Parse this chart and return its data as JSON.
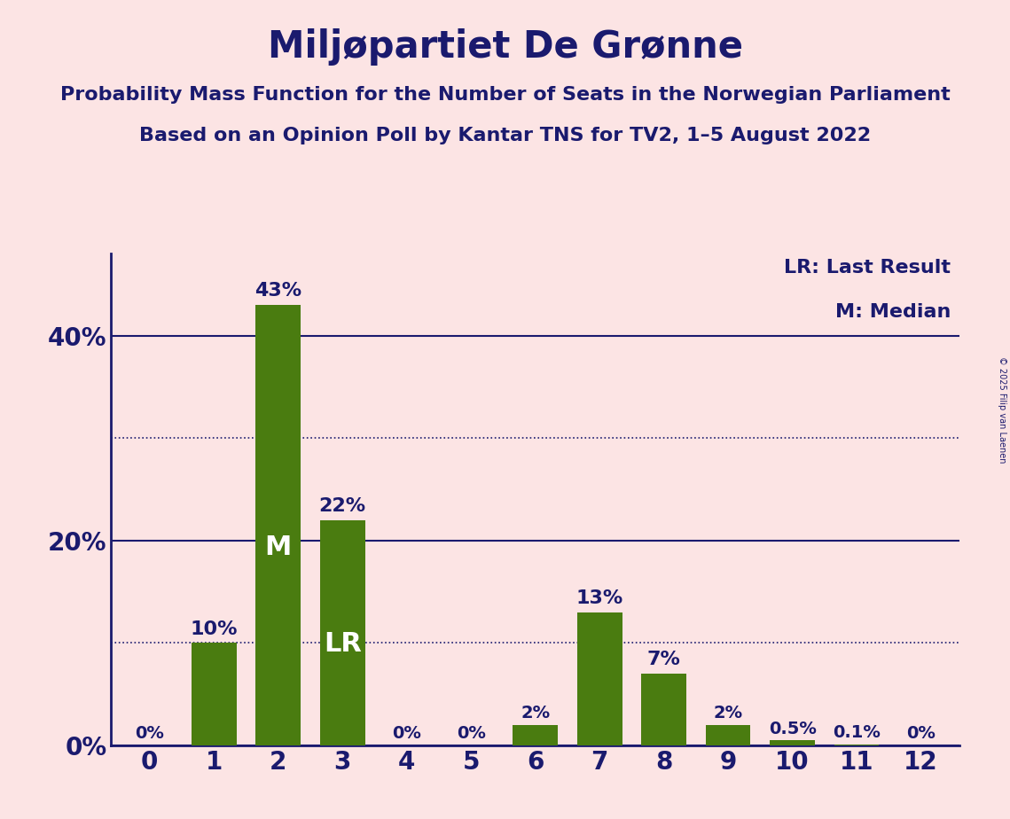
{
  "title": "Miljøpartiet De Grønne",
  "subtitle1": "Probability Mass Function for the Number of Seats in the Norwegian Parliament",
  "subtitle2": "Based on an Opinion Poll by Kantar TNS for TV2, 1–5 August 2022",
  "copyright": "© 2025 Filip van Laenen",
  "categories": [
    0,
    1,
    2,
    3,
    4,
    5,
    6,
    7,
    8,
    9,
    10,
    11,
    12
  ],
  "values": [
    0.0,
    10.0,
    43.0,
    22.0,
    0.0,
    0.0,
    2.0,
    13.0,
    7.0,
    2.0,
    0.5,
    0.1,
    0.0
  ],
  "bar_color": "#4a7c10",
  "background_color": "#fce4e4",
  "text_color": "#1a1a6e",
  "bar_labels": [
    "0%",
    "10%",
    "43%",
    "22%",
    "0%",
    "0%",
    "2%",
    "13%",
    "7%",
    "2%",
    "0.5%",
    "0.1%",
    "0%"
  ],
  "median_bar": 2,
  "lr_bar": 3,
  "legend_lr": "LR: Last Result",
  "legend_m": "M: Median",
  "ytick_labels_show": [
    "0%",
    "20%",
    "40%"
  ],
  "ytick_labels_show_vals": [
    0,
    20,
    40
  ],
  "solid_yticks": [
    0,
    20,
    40
  ],
  "dotted_yticks": [
    10,
    30
  ],
  "ylim": [
    0,
    48
  ],
  "title_fontsize": 30,
  "subtitle_fontsize": 16,
  "tick_fontsize": 20,
  "bar_label_fontsize_large": 16,
  "bar_label_fontsize_small": 14,
  "bar_label_threshold": 5,
  "bar_inner_fontsize": 22,
  "legend_fontsize": 16
}
